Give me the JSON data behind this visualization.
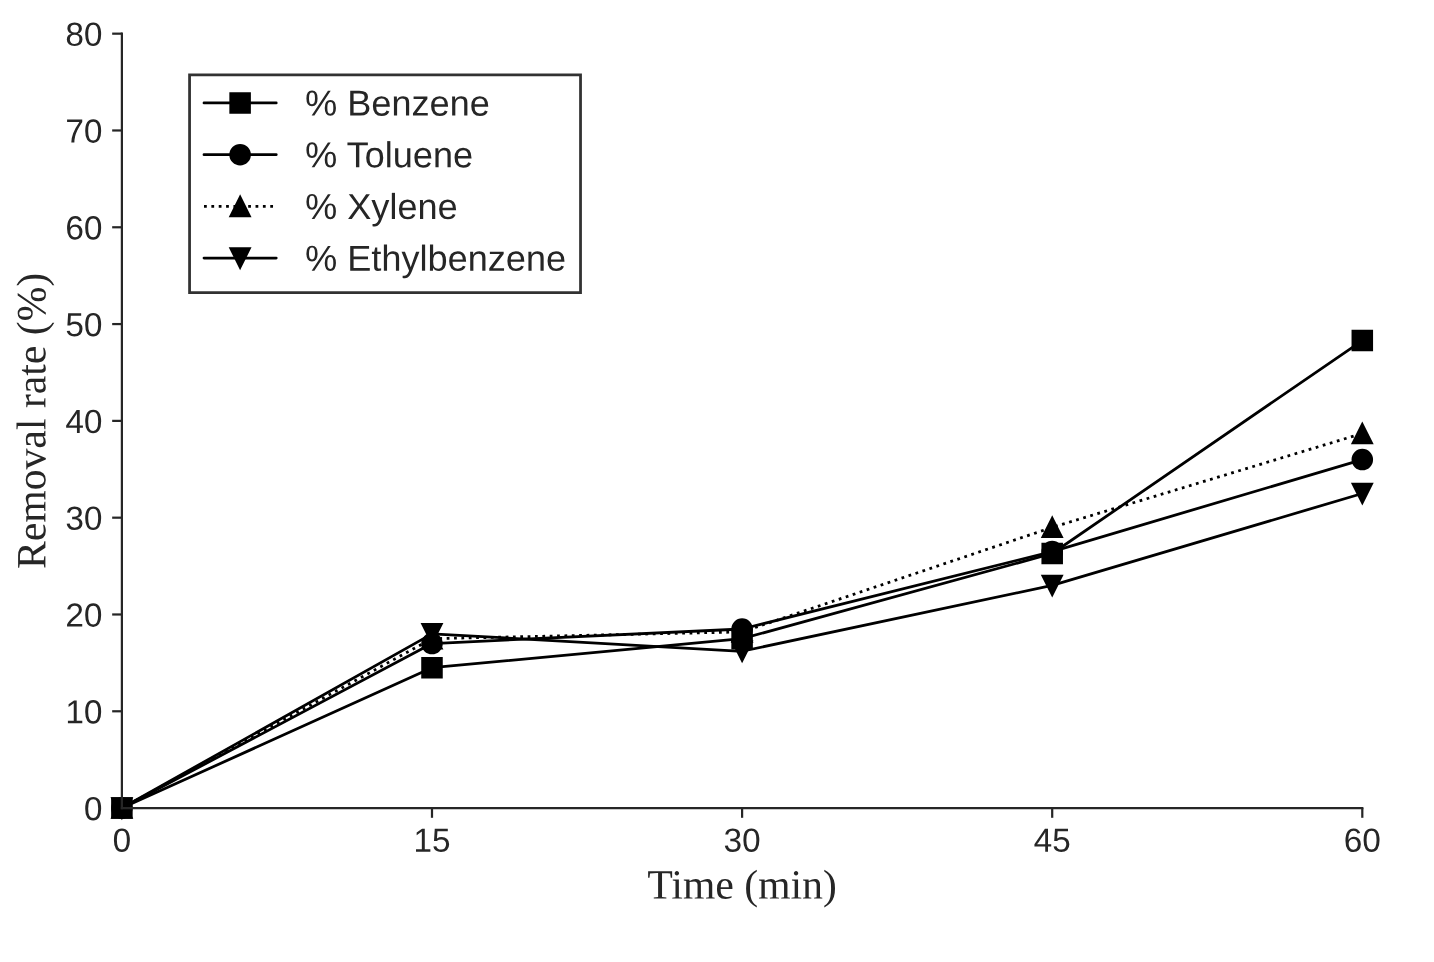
{
  "chart_data": {
    "type": "line",
    "xlabel": "Time (min)",
    "ylabel": "Removal rate (%)",
    "x": [
      0,
      15,
      30,
      45,
      60
    ],
    "series": [
      {
        "name": "% Benzene",
        "color": "#000000",
        "marker": "square",
        "line_style": "solid",
        "values": [
          0,
          14.5,
          17.5,
          26.3,
          48.3
        ]
      },
      {
        "name": "% Toluene",
        "color": "#000000",
        "marker": "circle",
        "line_style": "solid",
        "values": [
          0,
          17,
          18.5,
          26.5,
          36
        ]
      },
      {
        "name": "% Xylene",
        "color": "#000000",
        "marker": "triangle",
        "line_style": "dotted",
        "values": [
          0,
          17.5,
          18.2,
          29,
          38.7
        ]
      },
      {
        "name": "% Ethylbenzene",
        "color": "#000000",
        "marker": "triangle_down",
        "line_style": "solid",
        "values": [
          0,
          18,
          16.2,
          23,
          32.5
        ]
      }
    ],
    "xlim": [
      0,
      60
    ],
    "xticks": [
      0,
      15,
      30,
      45,
      60
    ],
    "ylim": [
      0,
      80
    ],
    "yticks": [
      0,
      10,
      20,
      30,
      40,
      50,
      60,
      70,
      80
    ],
    "grid": false,
    "legend": "top left"
  }
}
